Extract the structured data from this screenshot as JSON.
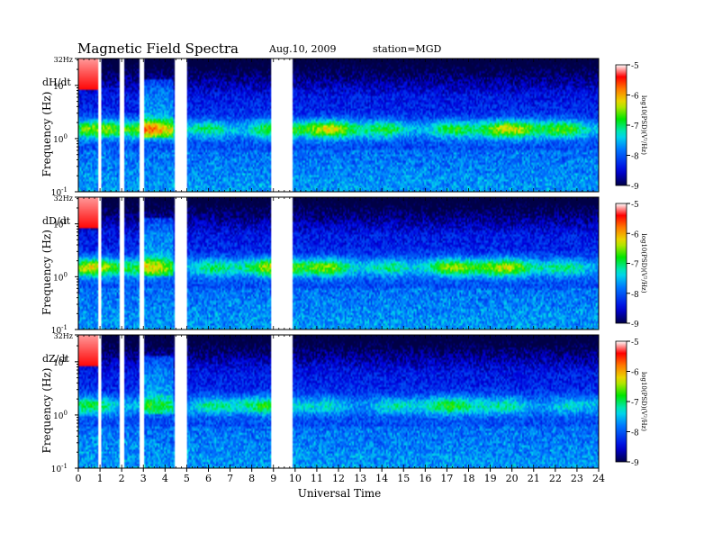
{
  "header": {
    "title": "Magnetic  Field  Spectra",
    "date": "Aug.10, 2009",
    "station": "station=MGD"
  },
  "chart_data": {
    "type": "heatmap",
    "xlabel": "Universal Time",
    "x_ticks": [
      "0",
      "1",
      "2",
      "3",
      "4",
      "5",
      "6",
      "7",
      "8",
      "9",
      "10",
      "11",
      "12",
      "13",
      "14",
      "15",
      "16",
      "17",
      "18",
      "19",
      "20",
      "21",
      "22",
      "23",
      "24"
    ],
    "xlim": [
      0,
      24
    ],
    "y_scale": "log",
    "ylim": [
      0.1,
      32
    ],
    "y_ticks": [
      {
        "value": 32,
        "label": "32Hz"
      },
      {
        "value": 10,
        "label": "10",
        "sup": "1"
      },
      {
        "value": 1,
        "label": "10",
        "sup": "0"
      },
      {
        "value": 0.1,
        "label": "10",
        "sup": "-1"
      }
    ],
    "panels": [
      {
        "label": "dH/dt",
        "ylabel": "Frequency  (Hz)"
      },
      {
        "label": "dD/dt",
        "ylabel": "Frequency  (Hz)"
      },
      {
        "label": "dZ/dt",
        "ylabel": "Frequency  (Hz)"
      }
    ],
    "colorbar": {
      "label": "log10(PSD)(V²/Hz)",
      "range": [
        -9,
        -5
      ],
      "ticks": [
        "-5",
        "-6",
        "-7",
        "-8",
        "-9"
      ]
    },
    "data_gaps_hours": [
      [
        0.95,
        1.05
      ],
      [
        1.95,
        2.1
      ],
      [
        2.85,
        3.0
      ],
      [
        4.45,
        5.0
      ],
      [
        8.95,
        9.85
      ]
    ],
    "band_center_hz": 1.5
  }
}
